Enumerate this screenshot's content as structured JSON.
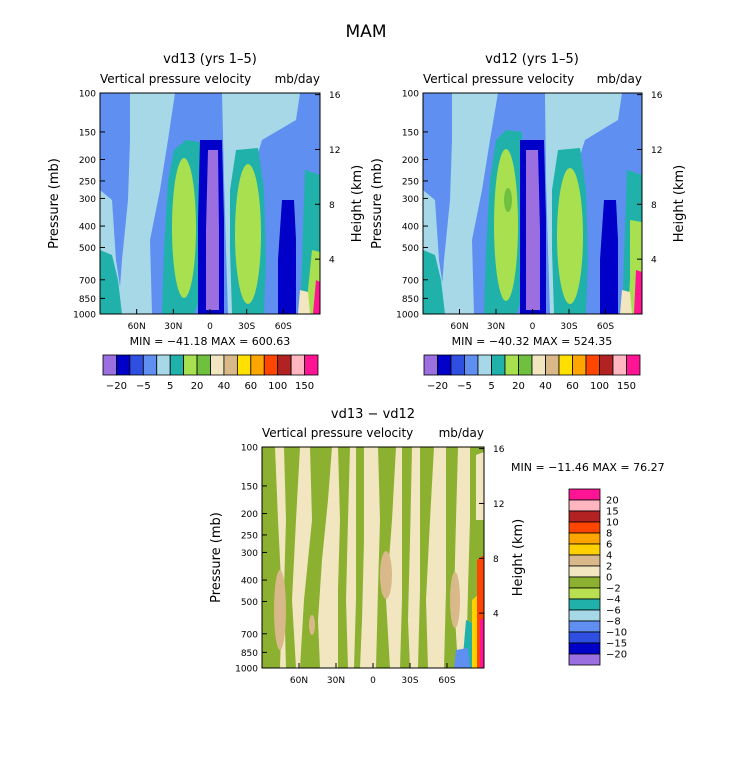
{
  "title": "MAM",
  "panels": [
    {
      "id": "vd13",
      "title": "vd13 (yrs 1–5)",
      "subtitle_left": "Vertical pressure velocity",
      "subtitle_right": "mb/day",
      "ylabel_left": "Pressure (mb)",
      "ylabel_right": "Height (km)",
      "min_max": "MIN = −41.18   MAX = 600.63"
    },
    {
      "id": "vd12",
      "title": "vd12 (yrs 1–5)",
      "subtitle_left": "Vertical pressure velocity",
      "subtitle_right": "mb/day",
      "ylabel_left": "Pressure (mb)",
      "ylabel_right": "Height (km)",
      "min_max": "MIN = −40.32   MAX = 524.35"
    },
    {
      "id": "diff",
      "title": "vd13 − vd12",
      "subtitle_left": "Vertical pressure velocity",
      "subtitle_right": "mb/day",
      "ylabel_left": "Pressure (mb)",
      "ylabel_right": "Height (km)",
      "min_max": "MIN = −11.46   MAX =  76.27"
    }
  ],
  "chart_data": {
    "type": "heatmap",
    "x_ticks": [
      "60N",
      "30N",
      "0",
      "30S",
      "60S"
    ],
    "x_tick_lat": [
      60,
      30,
      0,
      -30,
      -60
    ],
    "xlim": [
      90,
      -90
    ],
    "pressure_ticks": [
      "100",
      "150",
      "200",
      "250",
      "300",
      "400",
      "500",
      "700",
      "850",
      "1000"
    ],
    "pressure_values": [
      100,
      150,
      200,
      250,
      300,
      400,
      500,
      700,
      850,
      1000
    ],
    "height_ticks": [
      "16",
      "12",
      "8",
      "4"
    ],
    "height_values": [
      16,
      12,
      8,
      4
    ],
    "top_legend": {
      "labels": [
        "−20",
        "−5",
        "5",
        "20",
        "40",
        "60",
        "100",
        "150"
      ],
      "colors": [
        "#9B6FDF",
        "#0000C8",
        "#2E4FE0",
        "#5F8FF0",
        "#A6D8E8",
        "#20B2AA",
        "#A8E050",
        "#70C040",
        "#F2E6C0",
        "#D9B98A",
        "#FFE000",
        "#FFA500",
        "#FF4500",
        "#B22222",
        "#FFB6C1",
        "#FF1493"
      ]
    },
    "diff_legend": {
      "labels": [
        "20",
        "15",
        "10",
        "8",
        "6",
        "4",
        "2",
        "0",
        "−2",
        "−4",
        "−6",
        "−8",
        "−10",
        "−15",
        "−20"
      ],
      "colors": [
        "#FF1493",
        "#FFB6C1",
        "#B22222",
        "#FF4500",
        "#FFA500",
        "#FFD000",
        "#D9B98A",
        "#F2E6C0",
        "#8CB030",
        "#B8E050",
        "#20B2AA",
        "#A6D8E8",
        "#5F8FF0",
        "#2E4FE0",
        "#0000C8",
        "#9B6FDF"
      ]
    }
  }
}
